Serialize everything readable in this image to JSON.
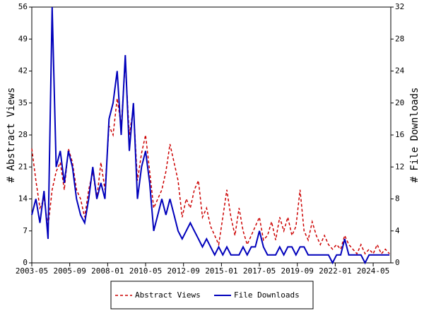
{
  "chart_data": {
    "type": "line",
    "y_label": "# Abstract Views",
    "y2_label": "# File Downloads",
    "x": [
      "2003-05",
      "2003-08",
      "2003-11",
      "2004-02",
      "2004-05",
      "2004-08",
      "2004-11",
      "2005-02",
      "2005-05",
      "2005-08",
      "2005-11",
      "2006-02",
      "2006-05",
      "2006-08",
      "2006-11",
      "2007-02",
      "2007-05",
      "2007-08",
      "2007-11",
      "2008-02",
      "2008-05",
      "2008-08",
      "2008-11",
      "2009-02",
      "2009-05",
      "2009-08",
      "2009-11",
      "2010-02",
      "2010-05",
      "2010-08",
      "2010-11",
      "2011-02",
      "2011-05",
      "2011-08",
      "2011-11",
      "2012-02",
      "2012-05",
      "2012-08",
      "2012-11",
      "2013-02",
      "2013-05",
      "2013-08",
      "2013-11",
      "2014-02",
      "2014-05",
      "2014-08",
      "2014-11",
      "2015-02",
      "2015-05",
      "2015-08",
      "2015-11",
      "2016-02",
      "2016-05",
      "2016-08",
      "2016-11",
      "2017-02",
      "2017-05",
      "2017-08",
      "2017-11",
      "2018-02",
      "2018-05",
      "2018-08",
      "2018-11",
      "2019-02",
      "2019-05",
      "2019-08",
      "2019-11",
      "2020-02",
      "2020-05",
      "2020-08",
      "2020-11",
      "2021-02",
      "2021-05",
      "2021-08",
      "2021-11",
      "2022-02",
      "2022-05",
      "2022-08",
      "2022-11",
      "2023-02",
      "2023-05",
      "2023-08",
      "2023-11",
      "2024-02",
      "2024-05",
      "2024-08",
      "2024-11",
      "2025-02",
      "2025-05"
    ],
    "series": [
      {
        "name": "Abstract Views",
        "color": "#cc0000",
        "dashed": true,
        "axis": "y",
        "values": [
          25,
          18,
          12,
          14,
          8,
          16,
          20,
          22,
          16,
          25,
          22,
          16,
          14,
          10,
          16,
          20,
          14,
          22,
          16,
          30,
          28,
          36,
          30,
          44,
          28,
          34,
          18,
          24,
          28,
          20,
          12,
          14,
          16,
          20,
          26,
          22,
          18,
          10,
          14,
          12,
          16,
          18,
          10,
          12,
          8,
          6,
          4,
          10,
          16,
          10,
          6,
          12,
          7,
          4,
          6,
          8,
          10,
          5,
          6,
          9,
          5,
          10,
          7,
          10,
          6,
          8,
          16,
          7,
          5,
          9,
          6,
          4,
          6,
          4,
          3,
          4,
          3,
          6,
          4,
          3,
          2,
          4,
          2,
          3,
          2,
          4,
          2,
          3,
          2
        ]
      },
      {
        "name": "File Downloads",
        "color": "#0000bb",
        "dashed": false,
        "axis": "y2",
        "values": [
          6,
          8,
          5,
          9,
          3,
          32,
          12,
          14,
          10,
          14,
          12,
          8,
          6,
          5,
          8,
          12,
          8,
          10,
          8,
          18,
          20,
          24,
          16,
          26,
          14,
          20,
          8,
          12,
          14,
          10,
          4,
          6,
          8,
          6,
          8,
          6,
          4,
          3,
          4,
          5,
          4,
          3,
          2,
          3,
          2,
          1,
          2,
          1,
          2,
          1,
          1,
          1,
          2,
          1,
          2,
          2,
          4,
          2,
          1,
          1,
          1,
          2,
          1,
          2,
          2,
          1,
          2,
          2,
          1,
          1,
          1,
          1,
          1,
          1,
          0,
          1,
          1,
          3,
          1,
          1,
          1,
          1,
          0,
          1,
          1,
          1,
          1,
          1,
          1
        ]
      }
    ],
    "xlim": [
      "2003-05",
      "2025-06"
    ],
    "xticks": [
      "2003-05",
      "2005-09",
      "2008-01",
      "2010-05",
      "2012-09",
      "2015-01",
      "2017-05",
      "2019-09",
      "2022-01",
      "2024-05"
    ],
    "ylim": [
      0,
      56
    ],
    "yticks": [
      0,
      7,
      14,
      21,
      28,
      35,
      42,
      49,
      56
    ],
    "y2lim": [
      0,
      32
    ],
    "y2ticks": [
      0,
      4,
      8,
      12,
      16,
      20,
      24,
      28,
      32
    ]
  }
}
